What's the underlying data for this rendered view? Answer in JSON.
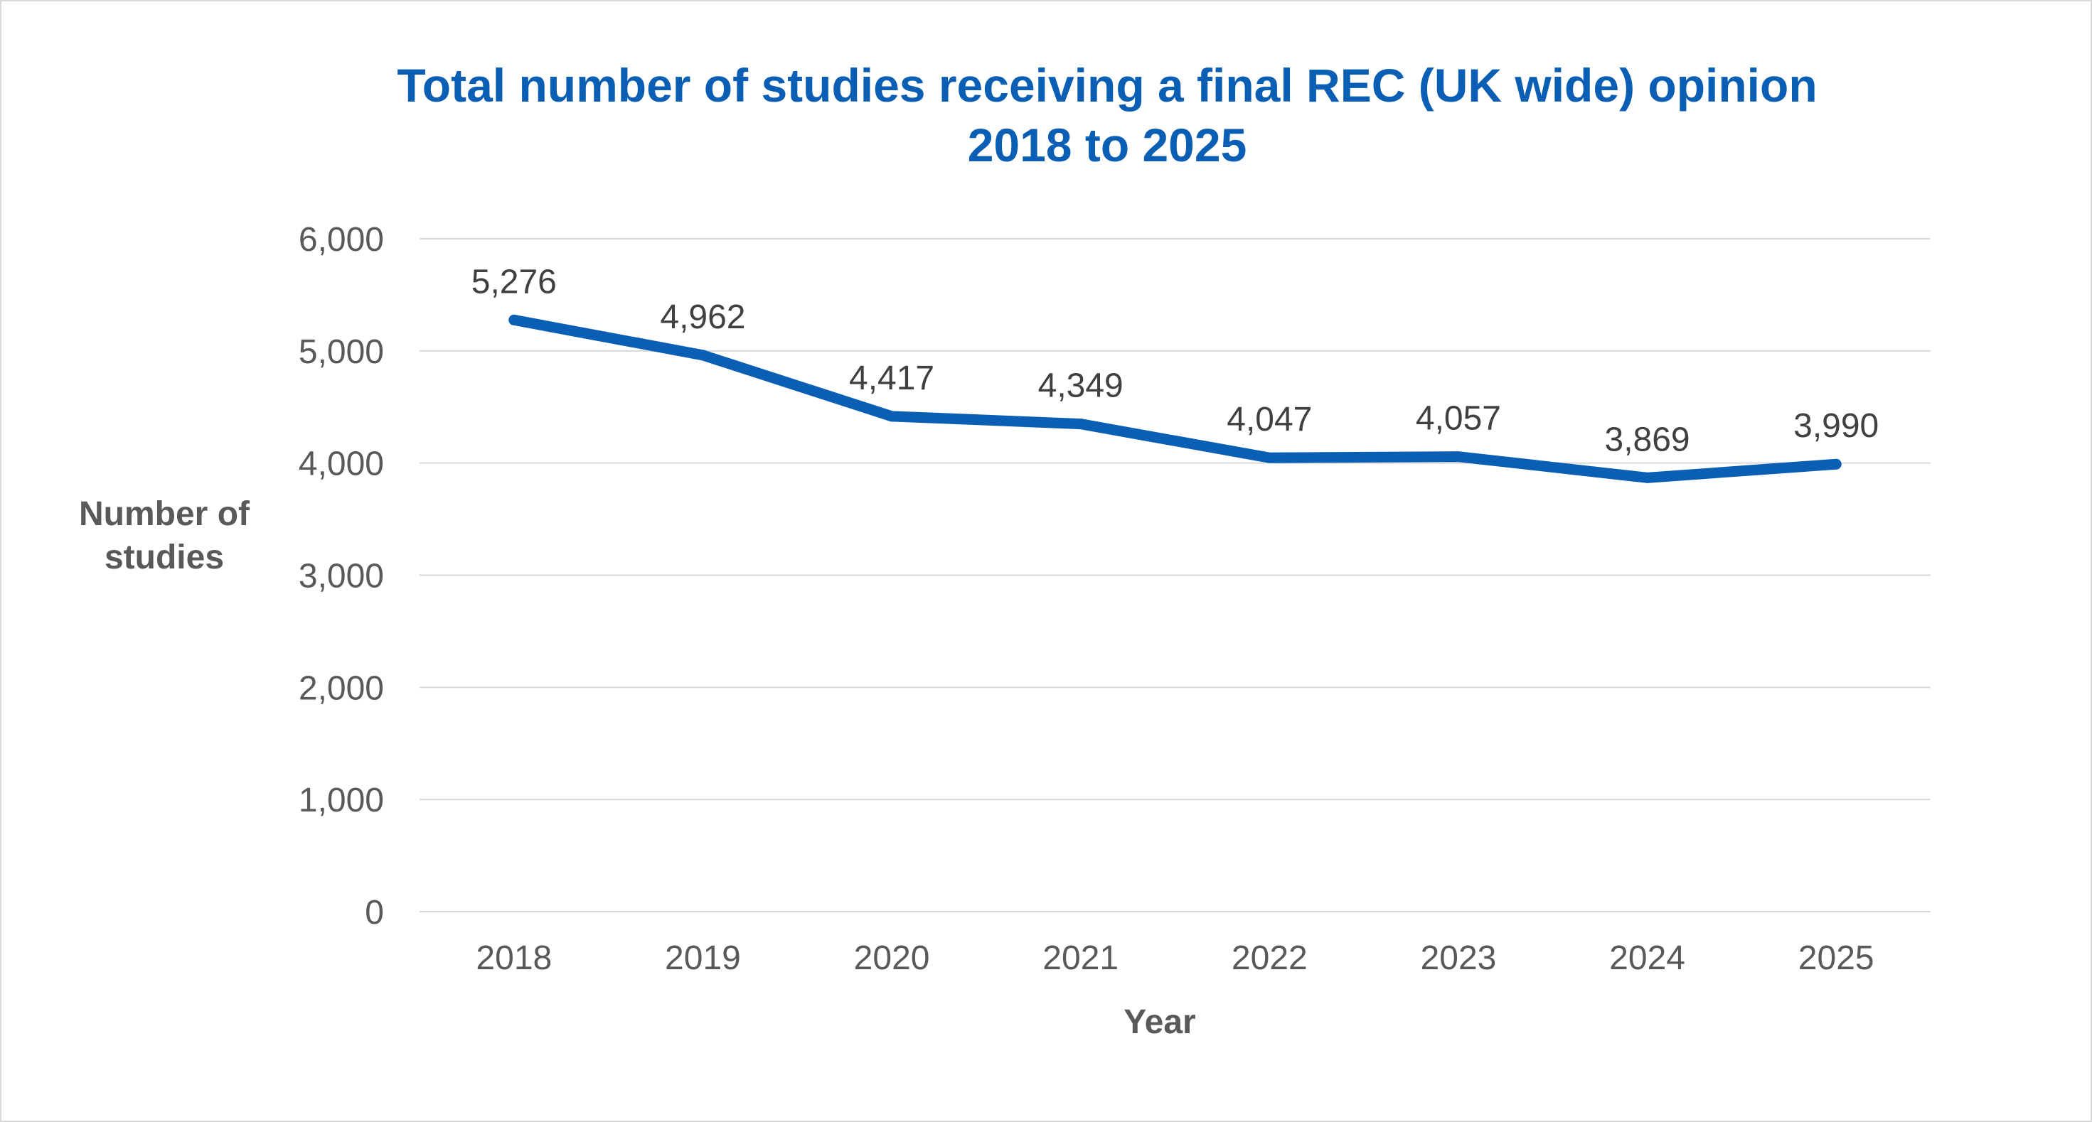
{
  "chart_data": {
    "type": "line",
    "title": [
      "Total number of studies receiving a final REC (UK wide) opinion",
      "2018 to 2025"
    ],
    "xlabel": "Year",
    "ylabel": [
      "Number of",
      "studies"
    ],
    "categories": [
      "2018",
      "2019",
      "2020",
      "2021",
      "2022",
      "2023",
      "2024",
      "2025"
    ],
    "series": [
      {
        "values": [
          5276,
          4962,
          4417,
          4349,
          4047,
          4057,
          3869,
          3990
        ],
        "color": "#0a5fb4"
      }
    ],
    "data_labels": [
      "5,276",
      "4,962",
      "4,417",
      "4,349",
      "4,047",
      "4,057",
      "3,869",
      "3,990"
    ],
    "ylim": [
      0,
      6000
    ],
    "yticks": [
      0,
      1000,
      2000,
      3000,
      4000,
      5000,
      6000
    ],
    "ytick_labels": [
      "0",
      "1,000",
      "2,000",
      "3,000",
      "4,000",
      "5,000",
      "6,000"
    ],
    "grid": true,
    "legend": "none"
  }
}
